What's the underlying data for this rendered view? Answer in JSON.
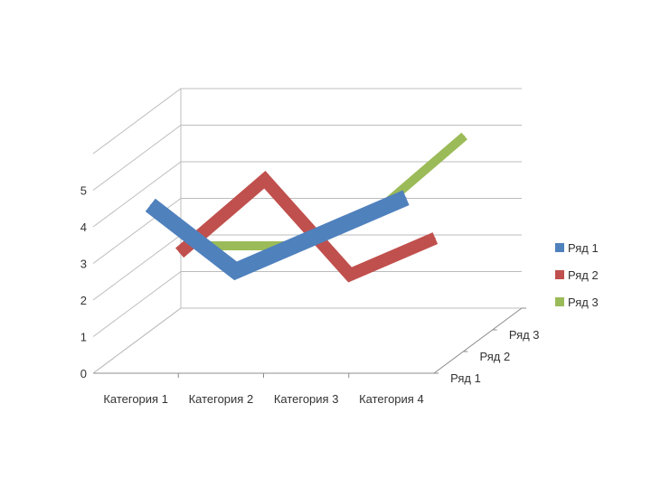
{
  "chart_data": {
    "type": "line",
    "variant": "3d",
    "title": "",
    "xlabel": "",
    "ylabel": "",
    "categories": [
      "Категория 1",
      "Категория 2",
      "Категория 3",
      "Категория 4"
    ],
    "ylim": [
      0,
      5
    ],
    "yticks": [
      "0",
      "1",
      "2",
      "3",
      "4",
      "5"
    ],
    "depth_labels": [
      "Ряд 1",
      "Ряд 2",
      "Ряд 3"
    ],
    "grid": true,
    "legend": "right",
    "series": [
      {
        "name": "Ряд 1",
        "color": "#4f81bd",
        "values": [
          4.3,
          2.5,
          3.5,
          4.5
        ]
      },
      {
        "name": "Ряд 2",
        "color": "#c0504d",
        "values": [
          2.4,
          4.4,
          1.8,
          2.8
        ]
      },
      {
        "name": "Ряд 3",
        "color": "#9bbb59",
        "values": [
          2,
          2,
          3,
          5
        ]
      }
    ]
  }
}
